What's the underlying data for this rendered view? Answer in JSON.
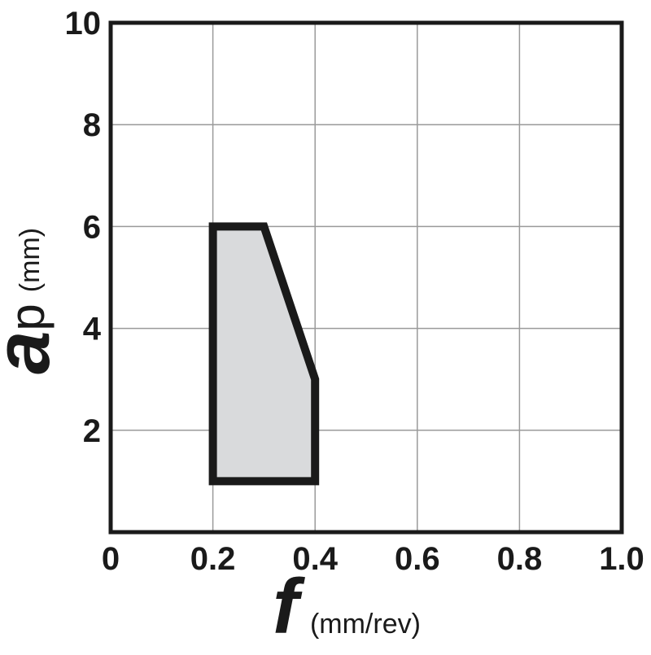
{
  "chart_data": {
    "type": "area",
    "xlim": [
      0,
      1.0
    ],
    "ylim": [
      0,
      10
    ],
    "x_ticks": [
      0,
      0.2,
      0.4,
      0.6,
      0.8,
      1.0
    ],
    "x_tick_labels": [
      "0",
      "0.2",
      "0.4",
      "0.6",
      "0.8",
      "1.0"
    ],
    "y_ticks": [
      2,
      4,
      6,
      8,
      10
    ],
    "y_tick_labels": [
      "2",
      "4",
      "6",
      "8",
      "10"
    ],
    "x_label": {
      "symbol": "f",
      "unit": "(mm/rev)"
    },
    "y_label": {
      "symbol": "a",
      "subscript": "p",
      "unit": "(mm)"
    },
    "grid": true,
    "region": {
      "points": [
        {
          "x": 0.2,
          "y": 1.0
        },
        {
          "x": 0.2,
          "y": 6.0
        },
        {
          "x": 0.3,
          "y": 6.0
        },
        {
          "x": 0.4,
          "y": 3.0
        },
        {
          "x": 0.4,
          "y": 1.0
        }
      ],
      "fill_color": "#d9dadc",
      "stroke_color": "#1a1a1a"
    },
    "colors": {
      "axis": "#1a1a1a",
      "grid": "#9a9a9a"
    }
  }
}
